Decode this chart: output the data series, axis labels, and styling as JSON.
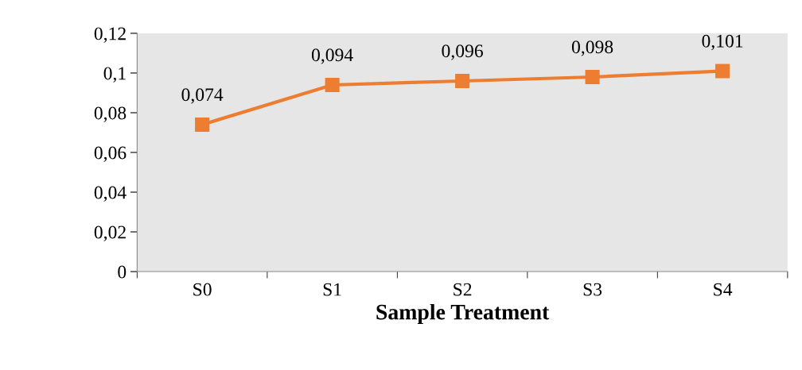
{
  "chart_data": {
    "type": "line",
    "xlabel": "Sample Treatment",
    "categories": [
      "S0",
      "S1",
      "S2",
      "S3",
      "S4"
    ],
    "series": [
      {
        "color": "#ed7d31",
        "values": [
          0.074,
          0.094,
          0.096,
          0.098,
          0.101
        ],
        "value_labels": [
          "0,074",
          "0,094",
          "0,096",
          "0,098",
          "0,101"
        ]
      }
    ],
    "ylim": [
      0,
      0.12
    ],
    "yticks": [
      {
        "value": 0,
        "label": "0"
      },
      {
        "value": 0.02,
        "label": "0,02"
      },
      {
        "value": 0.04,
        "label": "0,04"
      },
      {
        "value": 0.06,
        "label": "0,06"
      },
      {
        "value": 0.08,
        "label": "0,08"
      },
      {
        "value": 0.1,
        "label": "0,1"
      },
      {
        "value": 0.12,
        "label": "0,12"
      }
    ],
    "marker": "square",
    "line_style": "solid",
    "grid": false,
    "legend": false
  }
}
